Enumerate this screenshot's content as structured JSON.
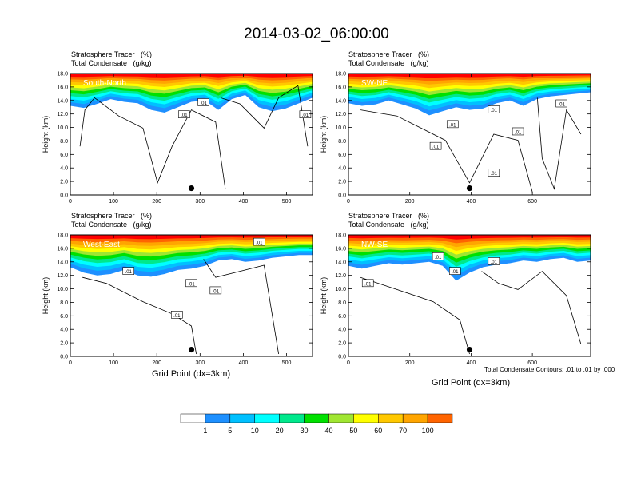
{
  "title": "2014-03-02_06:00:00",
  "colors": {
    "levels": [
      "#ffffff",
      "#1e90ff",
      "#00c0ff",
      "#00ffff",
      "#00e88c",
      "#00e000",
      "#a0e632",
      "#ffff00",
      "#ffc800",
      "#ffa500",
      "#ff6400",
      "#ff0000"
    ],
    "contour": "#000000"
  },
  "colorbar": {
    "labels": [
      "1",
      "5",
      "10",
      "20",
      "30",
      "40",
      "50",
      "60",
      "70",
      "100"
    ]
  },
  "footnote": "Total Condensate Contours: .01 to .01 by .000",
  "chart_data": [
    {
      "type": "heatmap",
      "title_line1": "Stratosphere Tracer   (%)",
      "title_line2": "Total Condensate   (g/kg)",
      "panel_label": "South-North",
      "ylabel": "Height (km)",
      "xlabel": "",
      "ylim": [
        0,
        18
      ],
      "xlim": [
        0,
        560
      ],
      "xticks": [
        0,
        100,
        200,
        300,
        400,
        500
      ],
      "yticks": [
        "0.0",
        "2.0",
        "4.0",
        "6.0",
        "8.0",
        "10.0",
        "12.0",
        "14.0",
        "16.0",
        "18.0"
      ],
      "tracer_base_km": [
        13.2,
        12.9,
        13.5,
        14.2,
        13.8,
        13.6,
        12.6,
        12.2,
        13.0,
        13.8,
        14.0,
        12.6,
        14.2,
        14.8,
        13.0,
        12.4,
        12.8,
        13.6,
        14.4
      ],
      "marker": {
        "x": 280,
        "y": 1.0
      },
      "contour_labels": [
        ".01",
        ".01",
        ".01"
      ]
    },
    {
      "type": "heatmap",
      "title_line1": "Stratosphere Tracer   (%)",
      "title_line2": "Total Condensate   (g/kg)",
      "panel_label": "SW-NE",
      "ylabel": "Height (km)",
      "xlabel": "",
      "ylim": [
        0,
        18
      ],
      "xlim": [
        0,
        790
      ],
      "xticks": [
        0,
        200,
        400,
        600
      ],
      "yticks": [
        "0.0",
        "2.0",
        "4.0",
        "6.0",
        "8.0",
        "10.0",
        "12.0",
        "14.0",
        "16.0",
        "18.0"
      ],
      "tracer_base_km": [
        13.6,
        13.2,
        13.4,
        14.0,
        13.4,
        12.8,
        11.8,
        12.4,
        13.0,
        12.6,
        12.8,
        13.6,
        14.0,
        13.2,
        14.2,
        14.6,
        14.8,
        15.0,
        15.2
      ],
      "marker": {
        "x": 395,
        "y": 1.0
      },
      "contour_labels": [
        ".01",
        ".01",
        ".01",
        ".01",
        ".01",
        ".01"
      ]
    },
    {
      "type": "heatmap",
      "title_line1": "Stratosphere Tracer   (%)",
      "title_line2": "Total Condensate   (g/kg)",
      "panel_label": "West-East",
      "ylabel": "Height (km)",
      "xlabel": "Grid Point (dx=3km)",
      "ylim": [
        0,
        18
      ],
      "xlim": [
        0,
        560
      ],
      "xticks": [
        0,
        100,
        200,
        300,
        400,
        500
      ],
      "yticks": [
        "0.0",
        "2.0",
        "4.0",
        "6.0",
        "8.0",
        "10.0",
        "12.0",
        "14.0",
        "16.0",
        "18.0"
      ],
      "tracer_base_km": [
        13.2,
        12.4,
        12.0,
        12.2,
        12.8,
        12.0,
        11.8,
        12.2,
        12.8,
        13.0,
        13.4,
        14.2,
        14.4,
        14.0,
        14.2,
        14.6,
        14.8,
        15.0,
        15.0
      ],
      "marker": {
        "x": 280,
        "y": 1.0
      },
      "contour_labels": [
        ".01",
        ".01",
        ".01",
        ".01",
        ".01"
      ]
    },
    {
      "type": "heatmap",
      "title_line1": "Stratosphere Tracer   (%)",
      "title_line2": "Total Condensate   (g/kg)",
      "panel_label": "NW-SE",
      "ylabel": "Height (km)",
      "xlabel": "Grid Point (dx=3km)",
      "ylim": [
        0,
        18
      ],
      "xlim": [
        0,
        790
      ],
      "xticks": [
        0,
        200,
        400,
        600
      ],
      "yticks": [
        "0.0",
        "2.0",
        "4.0",
        "6.0",
        "8.0",
        "10.0",
        "12.0",
        "14.0",
        "16.0",
        "18.0"
      ],
      "tracer_base_km": [
        13.4,
        13.0,
        13.4,
        13.8,
        13.6,
        13.8,
        14.0,
        13.4,
        11.2,
        12.4,
        13.2,
        13.6,
        13.8,
        14.2,
        14.0,
        14.4,
        14.6,
        14.0,
        14.2
      ],
      "marker": {
        "x": 395,
        "y": 1.0
      },
      "contour_labels": [
        ".01",
        ".01",
        ".01",
        ".01"
      ]
    }
  ]
}
